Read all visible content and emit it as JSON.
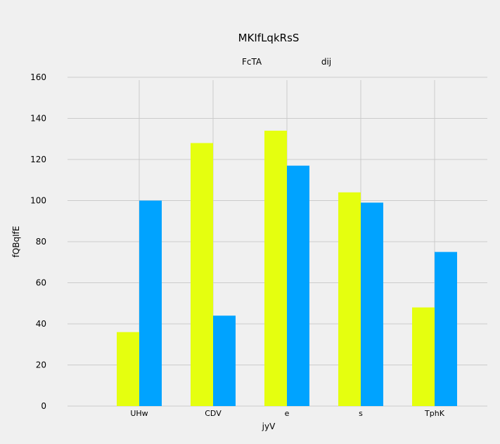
{
  "chart_data": {
    "type": "bar",
    "title": "MKIfLqkRsS",
    "xlabel": "jyV",
    "ylabel": "fQBqIfE",
    "categories": [
      "",
      "UHw",
      "CDV",
      "e",
      "s",
      "TphK"
    ],
    "series": [
      {
        "name": "FcTA",
        "color": "#e5ff0f",
        "values": [
          null,
          36,
          128,
          134,
          104,
          48
        ]
      },
      {
        "name": "dij",
        "color": "#00a3ff",
        "values": [
          null,
          100,
          44,
          117,
          99,
          75
        ]
      }
    ],
    "ylim": [
      0,
      160
    ],
    "yticks": [
      0,
      20,
      40,
      60,
      80,
      100,
      120,
      140,
      160
    ],
    "grid": true,
    "legend_position": "top"
  }
}
